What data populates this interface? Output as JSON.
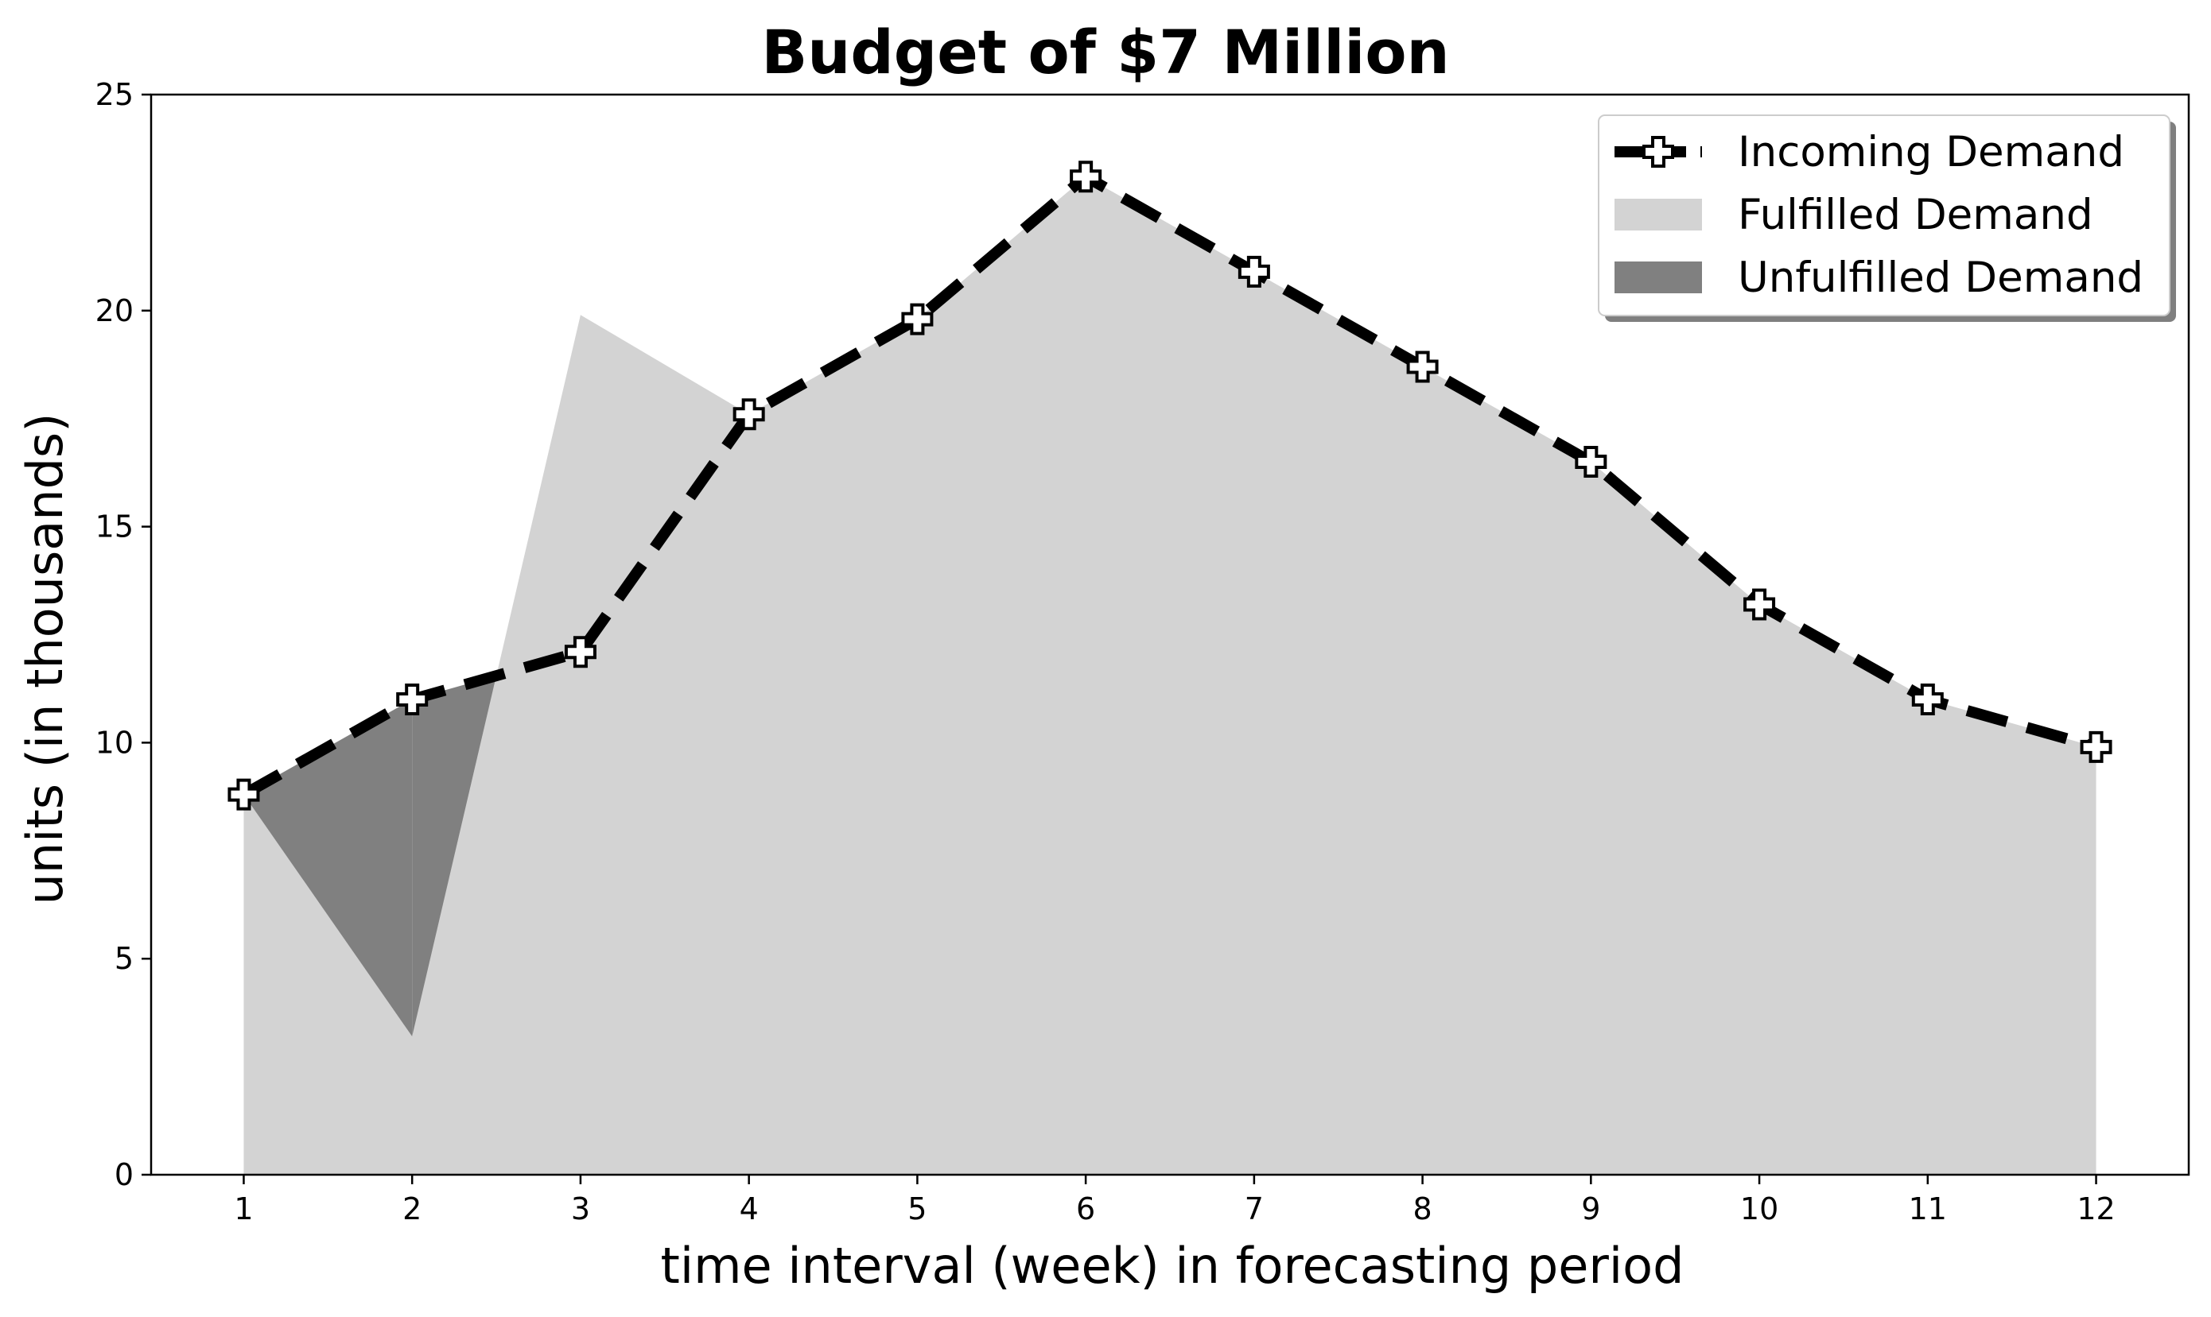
{
  "chart_data": {
    "type": "area",
    "title": "Budget of $7 Million",
    "xlabel": "time interval (week) in forecasting period",
    "ylabel": "units (in thousands)",
    "x": [
      1,
      2,
      3,
      4,
      5,
      6,
      7,
      8,
      9,
      10,
      11,
      12
    ],
    "xlim": [
      0.45,
      12.55
    ],
    "ylim": [
      0,
      25
    ],
    "yticks": [
      0,
      5,
      10,
      15,
      20,
      25
    ],
    "grid": false,
    "legend_position": "top-right",
    "series": [
      {
        "name": "Incoming Demand",
        "kind": "line",
        "style": "dashed",
        "marker": "plus",
        "color": "#000000",
        "values": [
          8.8,
          11.0,
          12.1,
          17.6,
          19.8,
          23.1,
          20.9,
          18.7,
          16.5,
          13.2,
          11.0,
          9.9
        ]
      },
      {
        "name": "Fulfilled Demand",
        "kind": "area",
        "color": "#d3d3d3",
        "values": [
          8.8,
          3.2,
          19.9,
          17.6,
          19.8,
          23.1,
          20.9,
          18.7,
          16.5,
          13.2,
          11.0,
          9.9
        ]
      },
      {
        "name": "Unfulfilled Demand",
        "kind": "area",
        "color": "#808080"
      }
    ]
  }
}
